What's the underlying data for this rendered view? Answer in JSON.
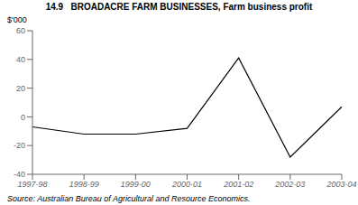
{
  "chart_data": {
    "type": "line",
    "title": "14.9   BROADACRE FARM BUSINESSES, Farm business profit",
    "ylabel": "$'000",
    "annotations": [
      "Source: Australian Bureau of Agricultural and Resource Economics."
    ],
    "categories": [
      "1997-98",
      "1998-99",
      "1999-00",
      "2000-01",
      "2001-02",
      "2002-03",
      "2003-04"
    ],
    "values": [
      -7,
      -12,
      -12,
      -8,
      41,
      -28,
      7
    ],
    "color": "#000000",
    "ylim": [
      -40,
      60
    ],
    "yticks": [
      -40,
      -20,
      0,
      20,
      40,
      60
    ],
    "grid": false
  }
}
